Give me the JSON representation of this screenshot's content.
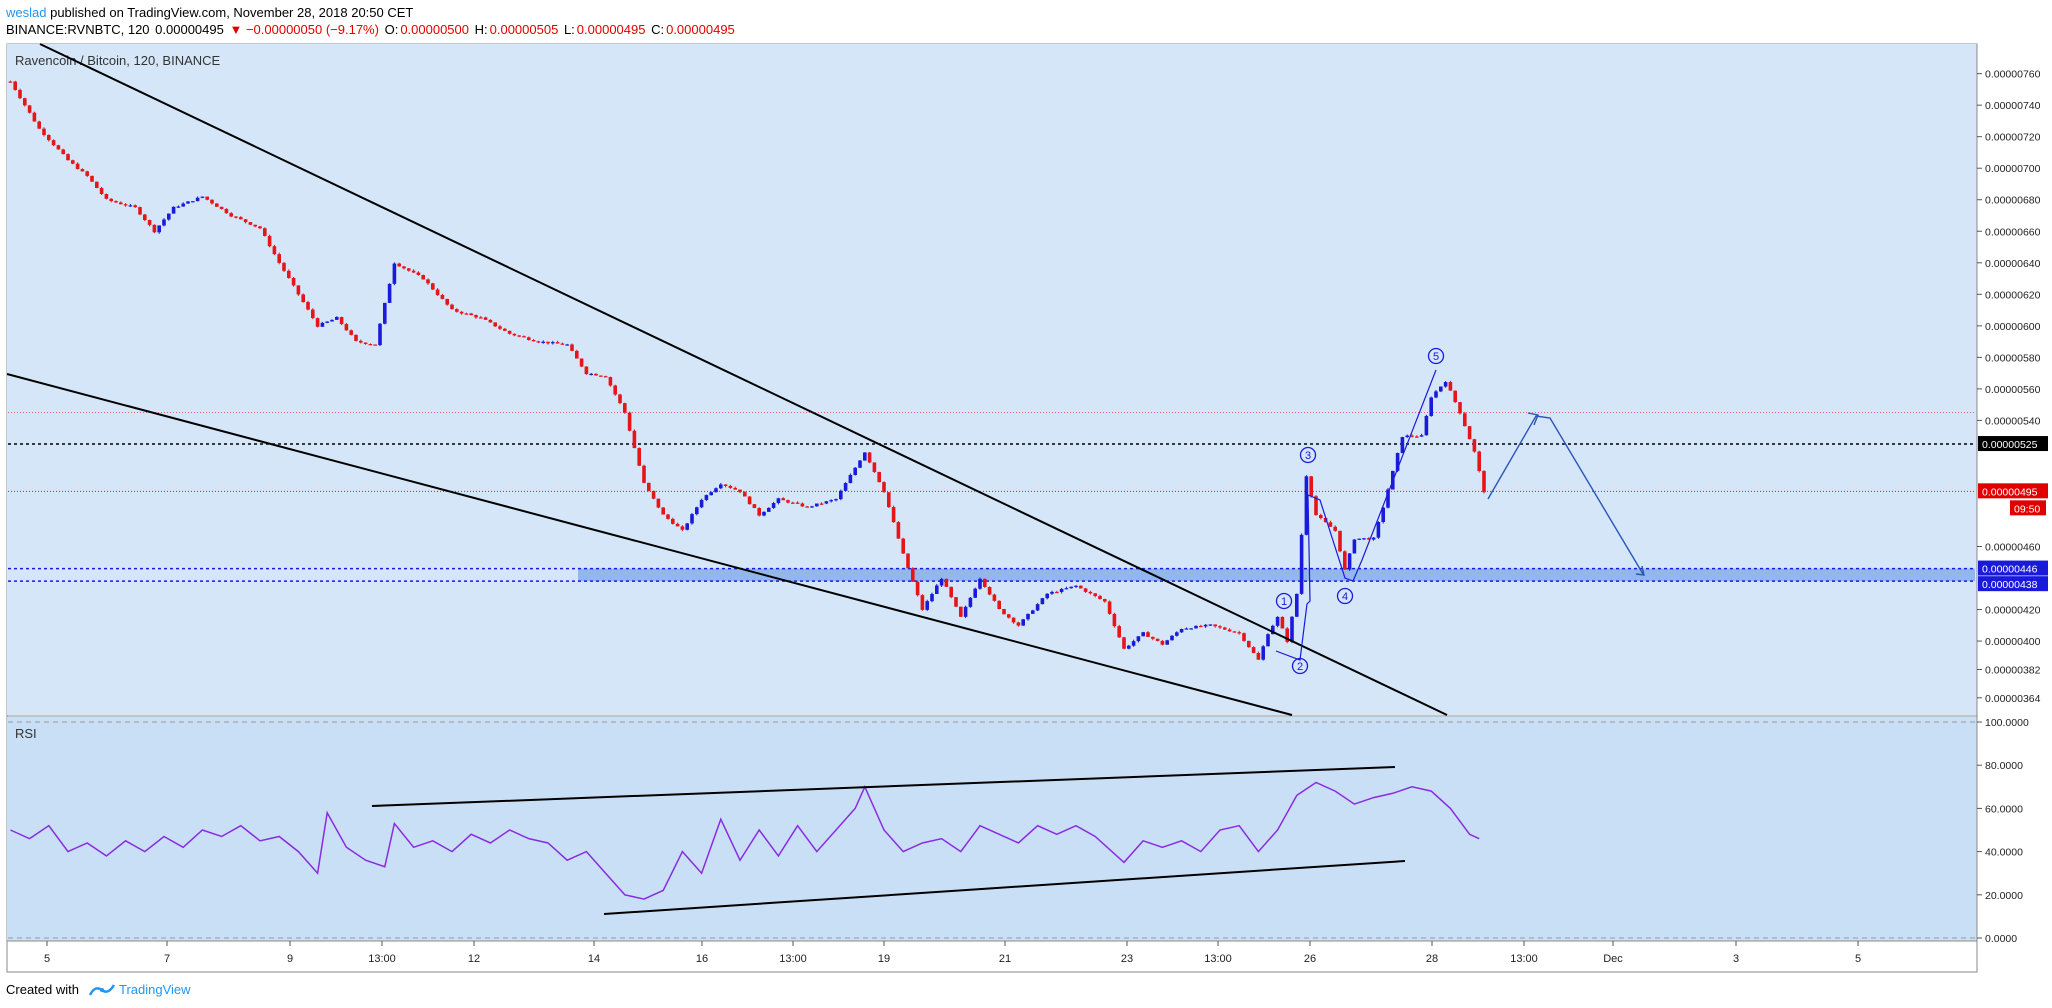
{
  "header": {
    "user": "weslad",
    "published": "published on TradingView.com, November 28, 2018 20:50 CET",
    "symbol": "BINANCE:RVNBTC, 120",
    "last": "0.00000495",
    "change": "▼ −0.00000050 (−9.17%)",
    "o_label": "O:",
    "o": "0.00000500",
    "h_label": "H:",
    "h": "0.00000505",
    "l_label": "L:",
    "l": "0.00000495",
    "c_label": "C:",
    "c": "0.00000495"
  },
  "pane_title": "Ravencoin / Bitcoin, 120, BINANCE",
  "rsi_title": "RSI",
  "footer": {
    "created_with": "Created with",
    "brand": "TradingView"
  },
  "colors": {
    "background": "#d4e6f8",
    "rsi_background": "#c9dff5",
    "up": "#1a1adb",
    "down": "#e5151a",
    "rsi_line": "#8a2be2",
    "zone": "#5b8fe0",
    "label_red": "#e00000"
  },
  "chart_data": [
    {
      "type": "candlestick",
      "title": "Ravencoin / Bitcoin, 120, BINANCE",
      "x_ticks": [
        "5",
        "7",
        "9",
        "13:00",
        "12",
        "14",
        "16",
        "13:00",
        "19",
        "21",
        "23",
        "13:00",
        "26",
        "28",
        "13:00",
        "Dec",
        "3",
        "5"
      ],
      "y_ticks": [
        "0.00000760",
        "0.00000740",
        "0.00000720",
        "0.00000700",
        "0.00000680",
        "0.00000660",
        "0.00000640",
        "0.00000620",
        "0.00000600",
        "0.00000580",
        "0.00000560",
        "0.00000540",
        "0.00000460",
        "0.00000420",
        "0.00000400",
        "0.00000382",
        "0.00000364"
      ],
      "ylim": [
        3.55e-06,
        7.75e-06
      ],
      "price_labels": [
        {
          "text": "0.00000525",
          "style": "black"
        },
        {
          "text": "0.00000495",
          "style": "red"
        },
        {
          "text": "09:50",
          "style": "red"
        },
        {
          "text": "0.00000446",
          "style": "blue"
        },
        {
          "text": "0.00000438",
          "style": "blue"
        }
      ],
      "levels": {
        "black_dotted": 5.25e-06,
        "red_dotted": 4.95e-06,
        "thin_red": 5.45e-06,
        "zone_top": 4.46e-06,
        "zone_bottom": 4.38e-06
      },
      "close_path": [
        [
          0,
          7.55e-06
        ],
        [
          6,
          7.25e-06
        ],
        [
          12,
          7.05e-06
        ],
        [
          16,
          6.95e-06
        ],
        [
          20,
          6.8e-06
        ],
        [
          26,
          6.75e-06
        ],
        [
          30,
          6.6e-06
        ],
        [
          34,
          6.75e-06
        ],
        [
          40,
          6.82e-06
        ],
        [
          46,
          6.7e-06
        ],
        [
          52,
          6.62e-06
        ],
        [
          56,
          6.4e-06
        ],
        [
          60,
          6.2e-06
        ],
        [
          64,
          6e-06
        ],
        [
          68,
          6.05e-06
        ],
        [
          72,
          5.9e-06
        ],
        [
          76,
          5.88e-06
        ],
        [
          80,
          6.4e-06
        ],
        [
          86,
          6.3e-06
        ],
        [
          92,
          6.1e-06
        ],
        [
          98,
          6.05e-06
        ],
        [
          104,
          5.95e-06
        ],
        [
          110,
          5.9e-06
        ],
        [
          116,
          5.88e-06
        ],
        [
          120,
          5.7e-06
        ],
        [
          124,
          5.68e-06
        ],
        [
          128,
          5.45e-06
        ],
        [
          132,
          5e-06
        ],
        [
          136,
          4.8e-06
        ],
        [
          140,
          4.7e-06
        ],
        [
          144,
          4.9e-06
        ],
        [
          148,
          5e-06
        ],
        [
          152,
          4.95e-06
        ],
        [
          156,
          4.8e-06
        ],
        [
          160,
          4.9e-06
        ],
        [
          166,
          4.85e-06
        ],
        [
          172,
          4.9e-06
        ],
        [
          178,
          5.2e-06
        ],
        [
          182,
          4.95e-06
        ],
        [
          186,
          4.55e-06
        ],
        [
          190,
          4.2e-06
        ],
        [
          194,
          4.4e-06
        ],
        [
          198,
          4.15e-06
        ],
        [
          202,
          4.4e-06
        ],
        [
          206,
          4.2e-06
        ],
        [
          210,
          4.1e-06
        ],
        [
          216,
          4.3e-06
        ],
        [
          222,
          4.35e-06
        ],
        [
          228,
          4.25e-06
        ],
        [
          232,
          3.95e-06
        ],
        [
          236,
          4.05e-06
        ],
        [
          240,
          3.98e-06
        ],
        [
          244,
          4.08e-06
        ],
        [
          250,
          4.1e-06
        ],
        [
          256,
          4.05e-06
        ],
        [
          260,
          3.88e-06
        ],
        [
          262,
          4.05e-06
        ],
        [
          264,
          4.15e-06
        ],
        [
          266,
          4e-06
        ],
        [
          268,
          4.3e-06
        ],
        [
          270,
          5.05e-06
        ],
        [
          272,
          4.8e-06
        ],
        [
          276,
          4.7e-06
        ],
        [
          278,
          4.45e-06
        ],
        [
          280,
          4.65e-06
        ],
        [
          284,
          4.65e-06
        ],
        [
          286,
          4.85e-06
        ],
        [
          290,
          5.3e-06
        ],
        [
          294,
          5.3e-06
        ],
        [
          296,
          5.55e-06
        ],
        [
          299,
          5.65e-06
        ],
        [
          302,
          5.45e-06
        ],
        [
          305,
          5.2e-06
        ],
        [
          307,
          4.95e-06
        ]
      ],
      "annotations": {
        "waves": [
          "1",
          "2",
          "3",
          "4",
          "5"
        ]
      }
    },
    {
      "type": "line",
      "title": "RSI",
      "y_ticks": [
        "100.0000",
        "80.0000",
        "60.0000",
        "40.0000",
        "20.0000",
        "0.0000"
      ],
      "ylim": [
        0,
        100
      ],
      "rsi_path": [
        [
          0,
          50
        ],
        [
          4,
          46
        ],
        [
          8,
          52
        ],
        [
          12,
          40
        ],
        [
          16,
          44
        ],
        [
          20,
          38
        ],
        [
          24,
          45
        ],
        [
          28,
          40
        ],
        [
          32,
          47
        ],
        [
          36,
          42
        ],
        [
          40,
          50
        ],
        [
          44,
          47
        ],
        [
          48,
          52
        ],
        [
          52,
          45
        ],
        [
          56,
          47
        ],
        [
          60,
          40
        ],
        [
          64,
          30
        ],
        [
          66,
          58
        ],
        [
          70,
          42
        ],
        [
          74,
          36
        ],
        [
          78,
          33
        ],
        [
          80,
          53
        ],
        [
          84,
          42
        ],
        [
          88,
          45
        ],
        [
          92,
          40
        ],
        [
          96,
          48
        ],
        [
          100,
          44
        ],
        [
          104,
          50
        ],
        [
          108,
          46
        ],
        [
          112,
          44
        ],
        [
          116,
          36
        ],
        [
          120,
          40
        ],
        [
          124,
          30
        ],
        [
          128,
          20
        ],
        [
          132,
          18
        ],
        [
          136,
          22
        ],
        [
          140,
          40
        ],
        [
          144,
          30
        ],
        [
          148,
          55
        ],
        [
          152,
          36
        ],
        [
          156,
          50
        ],
        [
          160,
          38
        ],
        [
          164,
          52
        ],
        [
          168,
          40
        ],
        [
          172,
          50
        ],
        [
          176,
          60
        ],
        [
          178,
          70
        ],
        [
          182,
          50
        ],
        [
          186,
          40
        ],
        [
          190,
          44
        ],
        [
          194,
          46
        ],
        [
          198,
          40
        ],
        [
          202,
          52
        ],
        [
          206,
          48
        ],
        [
          210,
          44
        ],
        [
          214,
          52
        ],
        [
          218,
          48
        ],
        [
          222,
          52
        ],
        [
          226,
          47
        ],
        [
          232,
          35
        ],
        [
          236,
          45
        ],
        [
          240,
          42
        ],
        [
          244,
          45
        ],
        [
          248,
          40
        ],
        [
          252,
          50
        ],
        [
          256,
          52
        ],
        [
          260,
          40
        ],
        [
          264,
          50
        ],
        [
          268,
          66
        ],
        [
          272,
          72
        ],
        [
          276,
          68
        ],
        [
          280,
          62
        ],
        [
          284,
          65
        ],
        [
          288,
          67
        ],
        [
          292,
          70
        ],
        [
          296,
          68
        ],
        [
          300,
          60
        ],
        [
          304,
          48
        ],
        [
          306,
          46
        ]
      ]
    }
  ]
}
